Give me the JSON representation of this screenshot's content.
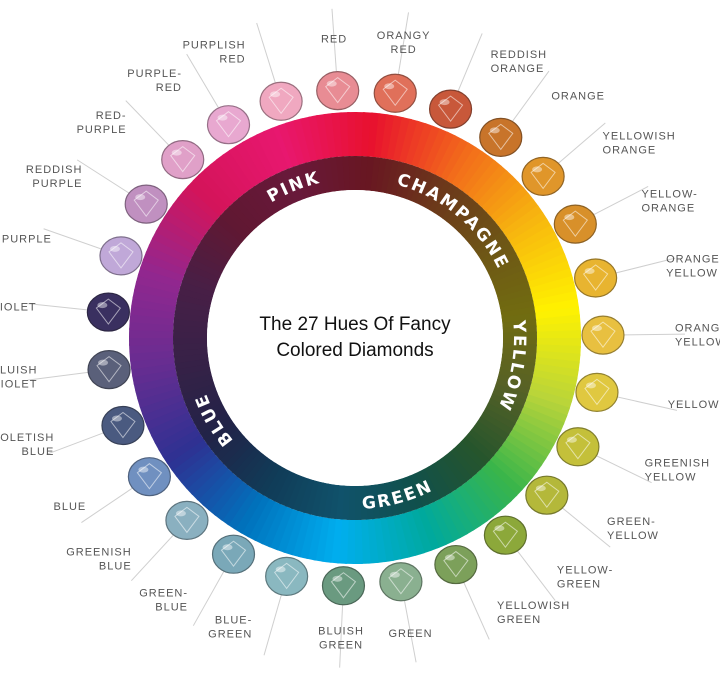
{
  "center_title": {
    "line1": "The 27 Hues Of Fancy",
    "line2": "Colored Diamonds"
  },
  "families": [
    {
      "name": "PINK",
      "tint": "#8a2a4a"
    },
    {
      "name": "CHAMPAGNE",
      "tint": "#6a2a2a"
    },
    {
      "name": "YELLOW",
      "tint": "#6a5a2a"
    },
    {
      "name": "GREEN",
      "tint": "#2a5a3a"
    },
    {
      "name": "BLUE",
      "tint": "#2a3a5a"
    }
  ],
  "hues": [
    {
      "lines": [
        "RED"
      ],
      "color": "#e88c94"
    },
    {
      "lines": [
        "ORANGY",
        "RED"
      ],
      "color": "#e0705a"
    },
    {
      "lines": [
        "REDDISH",
        "ORANGE"
      ],
      "color": "#c8583a"
    },
    {
      "lines": [
        "ORANGE"
      ],
      "color": "#c8742a"
    },
    {
      "lines": [
        "YELLOWISH",
        "ORANGE"
      ],
      "color": "#e0962a"
    },
    {
      "lines": [
        "YELLOW-",
        "ORANGE"
      ],
      "color": "#d8902a"
    },
    {
      "lines": [
        "ORANGE-",
        "YELLOW"
      ],
      "color": "#e8b430"
    },
    {
      "lines": [
        "ORANGY-",
        "YELLOW"
      ],
      "color": "#e8c040"
    },
    {
      "lines": [
        "YELLOW"
      ],
      "color": "#e0c840"
    },
    {
      "lines": [
        "GREENISH",
        "YELLOW"
      ],
      "color": "#c4c03a"
    },
    {
      "lines": [
        "GREEN-",
        "YELLOW"
      ],
      "color": "#b4b83a"
    },
    {
      "lines": [
        "YELLOW-",
        "GREEN"
      ],
      "color": "#8ca83a"
    },
    {
      "lines": [
        "YELLOWISH",
        "GREEN"
      ],
      "color": "#7ca05a"
    },
    {
      "lines": [
        "GREEN"
      ],
      "color": "#8ab090"
    },
    {
      "lines": [
        "BLUISH",
        "GREEN"
      ],
      "color": "#6a9a80"
    },
    {
      "lines": [
        "BLUE-",
        "GREEN"
      ],
      "color": "#8ab8c0"
    },
    {
      "lines": [
        "GREEN-",
        "BLUE"
      ],
      "color": "#7aa8b8"
    },
    {
      "lines": [
        "GREENISH",
        "BLUE"
      ],
      "color": "#8ab0c0"
    },
    {
      "lines": [
        "BLUE"
      ],
      "color": "#7090c0"
    },
    {
      "lines": [
        "VIOLETISH",
        "BLUE"
      ],
      "color": "#4a5a80"
    },
    {
      "lines": [
        "BLUISH",
        "VIOLET"
      ],
      "color": "#5a607a"
    },
    {
      "lines": [
        "VIOLET"
      ],
      "color": "#3a3060"
    },
    {
      "lines": [
        "PURPLE"
      ],
      "color": "#c0a8d8"
    },
    {
      "lines": [
        "REDDISH",
        "PURPLE"
      ],
      "color": "#c090c0"
    },
    {
      "lines": [
        "RED-",
        "PURPLE"
      ],
      "color": "#e0a0c8"
    },
    {
      "lines": [
        "PURPLE-",
        "RED"
      ],
      "color": "#e8a8d0"
    },
    {
      "lines": [
        "PURPLISH",
        "RED"
      ],
      "color": "#f0a8c0"
    }
  ],
  "ring_colors": [
    "#e8176f",
    "#e8112e",
    "#f26a1b",
    "#f7b50f",
    "#fff200",
    "#b8d43a",
    "#39b54a",
    "#00a99d",
    "#00aeef",
    "#0072bc",
    "#2e3192",
    "#662d91",
    "#92278f",
    "#d4145a"
  ]
}
